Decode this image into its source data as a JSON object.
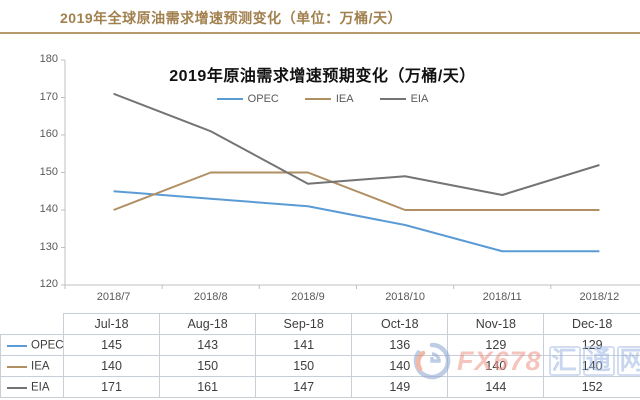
{
  "header": {
    "title": "2019年全球原油需求增速预测变化（单位：万桶/天）",
    "accent_color": "#a1804e",
    "divider_color": "#b79a6a"
  },
  "chart_data": {
    "type": "line",
    "title": "2019年原油需求增速预期变化（万桶/天）",
    "x": [
      "2018/7",
      "2018/8",
      "2018/9",
      "2018/10",
      "2018/11",
      "2018/12"
    ],
    "series": [
      {
        "name": "OPEC",
        "color": "#5b9bd5",
        "values": [
          145,
          143,
          141,
          136,
          129,
          129
        ]
      },
      {
        "name": "IEA",
        "color": "#b08f62",
        "values": [
          140,
          150,
          150,
          140,
          140,
          140
        ]
      },
      {
        "name": "EIA",
        "color": "#747474",
        "values": [
          171,
          161,
          147,
          149,
          144,
          152
        ]
      }
    ],
    "ylim": [
      120,
      180
    ],
    "y_ticks": [
      "180",
      "170",
      "160",
      "150",
      "140",
      "130",
      "120"
    ],
    "grid": false,
    "legend_position": "top",
    "axis_color": "#c0c0c0",
    "tick_label_color": "#595959"
  },
  "table": {
    "columns": [
      "Jul-18",
      "Aug-18",
      "Sep-18",
      "Oct-18",
      "Nov-18",
      "Dec-18"
    ],
    "rows": [
      {
        "label": "OPEC",
        "color": "#5b9bd5",
        "values": [
          "145",
          "143",
          "141",
          "136",
          "129",
          "129"
        ]
      },
      {
        "label": "IEA",
        "color": "#b08f62",
        "values": [
          "140",
          "150",
          "150",
          "140",
          "140",
          "140"
        ]
      },
      {
        "label": "EIA",
        "color": "#747474",
        "values": [
          "171",
          "161",
          "147",
          "149",
          "144",
          "152"
        ]
      }
    ]
  },
  "watermark": {
    "brand": "FX678",
    "site": "汇通网",
    "brand_color": "#ee9587",
    "site_color": "#9cb6e2"
  }
}
